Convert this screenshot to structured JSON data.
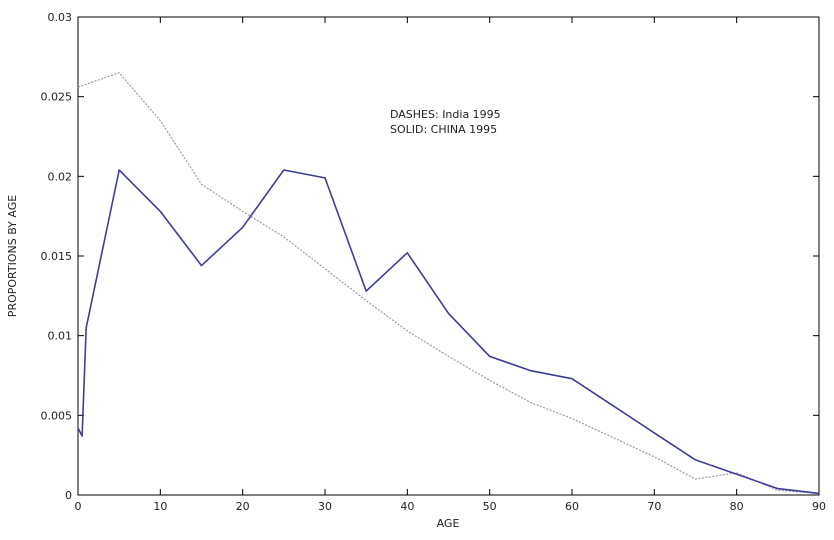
{
  "chart_data": {
    "type": "line",
    "xlabel": "AGE",
    "ylabel": "PROPORTIONS BY AGE",
    "xlim": [
      0,
      90
    ],
    "ylim": [
      0,
      0.03
    ],
    "xticks": [
      0,
      10,
      20,
      30,
      40,
      50,
      60,
      70,
      80,
      90
    ],
    "yticks": [
      0,
      0.005,
      0.01,
      0.015,
      0.02,
      0.025,
      0.03
    ],
    "xtick_labels": [
      "0",
      "10",
      "20",
      "30",
      "40",
      "50",
      "60",
      "70",
      "80",
      "90"
    ],
    "ytick_labels": [
      "0",
      "0.005",
      "0.01",
      "0.015",
      "0.02",
      "0.025",
      "0.03"
    ],
    "grid": false,
    "annotations": [
      "DASHES: India 1995",
      "SOLID: CHINA 1995"
    ],
    "series": [
      {
        "style": "dashed",
        "color": "#9a9a9a",
        "x": [
          0,
          5,
          10,
          15,
          20,
          25,
          30,
          35,
          40,
          45,
          50,
          55,
          60,
          65,
          70,
          75,
          80,
          85,
          90
        ],
        "y": [
          0.0256,
          0.0265,
          0.0235,
          0.0195,
          0.0178,
          0.0162,
          0.0142,
          0.0122,
          0.0103,
          0.0087,
          0.0072,
          0.0058,
          0.0048,
          0.0036,
          0.0024,
          0.001,
          0.0014,
          0.0003,
          0.0001
        ]
      },
      {
        "style": "solid",
        "color": "#3d3d9c",
        "x": [
          0,
          0.5,
          1,
          5,
          10,
          15,
          20,
          25,
          30,
          35,
          40,
          45,
          50,
          55,
          60,
          65,
          70,
          75,
          80,
          85,
          90
        ],
        "y": [
          0.0042,
          0.0037,
          0.0105,
          0.0204,
          0.0178,
          0.0144,
          0.0168,
          0.0204,
          0.0199,
          0.0128,
          0.0152,
          0.0114,
          0.0087,
          0.0078,
          0.0073,
          0.0056,
          0.0039,
          0.0022,
          0.0013,
          0.0004,
          0.0001
        ]
      }
    ]
  }
}
